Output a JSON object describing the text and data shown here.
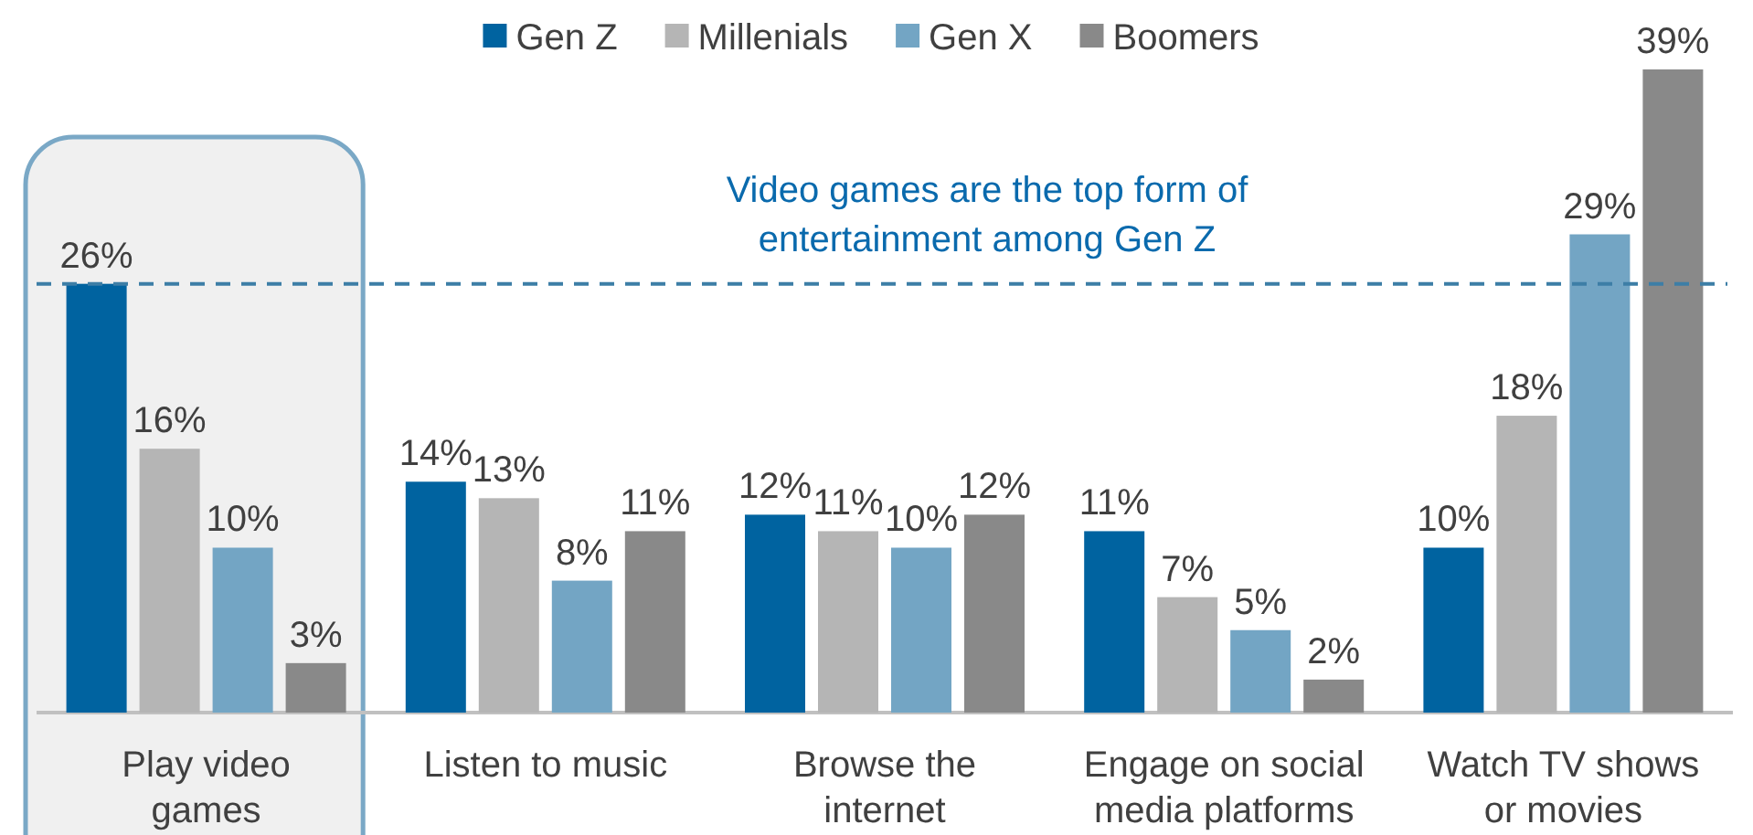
{
  "chart_data": {
    "type": "bar",
    "categories": [
      "Play video games",
      "Listen to music",
      "Browse the internet",
      "Engage on social media platforms",
      "Watch TV shows or movies"
    ],
    "series": [
      {
        "name": "Gen Z",
        "color": "#0063a0",
        "values": [
          26,
          14,
          12,
          11,
          10
        ],
        "value_labels": [
          "26%",
          "14%",
          "12%",
          "11%",
          "10%"
        ]
      },
      {
        "name": "Millenials",
        "color": "#b5b5b5",
        "values": [
          16,
          13,
          11,
          7,
          18
        ],
        "value_labels": [
          "16%",
          "13%",
          "11%",
          "7%",
          "18%"
        ]
      },
      {
        "name": "Gen X",
        "color": "#73a5c4",
        "values": [
          10,
          8,
          10,
          5,
          29
        ],
        "value_labels": [
          "10%",
          "8%",
          "10%",
          "5%",
          "29%"
        ]
      },
      {
        "name": "Boomers",
        "color": "#898989",
        "values": [
          3,
          11,
          12,
          2,
          39
        ],
        "value_labels": [
          "3%",
          "11%",
          "12%",
          "2%",
          "39%"
        ]
      }
    ],
    "ref_lines": [
      {
        "axis": "y",
        "value": 26,
        "label": "Video games are the top form of entertainment among Gen Z",
        "color": "#3d7ea6",
        "line_style": "dashed"
      }
    ],
    "bands": [
      {
        "axis": "x",
        "from": "Play video games",
        "to": "Play video games",
        "color": "#f0f0f0"
      }
    ],
    "legend": "top"
  }
}
